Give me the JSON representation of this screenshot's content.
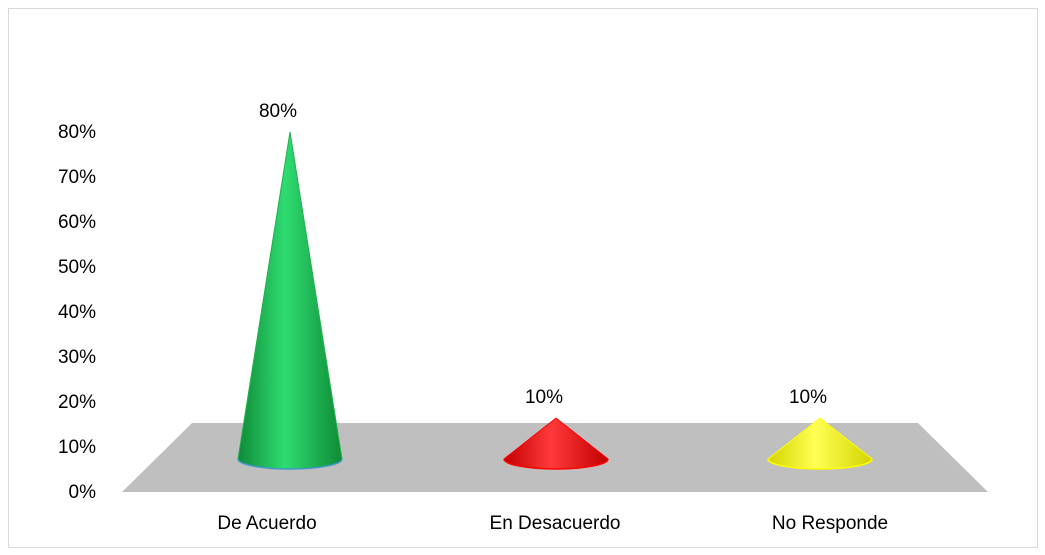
{
  "chart_data": {
    "type": "bar",
    "style": "3d-cone",
    "categories": [
      "De Acuerdo",
      "En Desacuerdo",
      "No Responde"
    ],
    "values": [
      0.8,
      0.1,
      0.1
    ],
    "data_labels": [
      "80%",
      "10%",
      "10%"
    ],
    "colors": [
      "#22b14c",
      "#ff0000",
      "#ffff00"
    ],
    "floor_color": "#bfbfbf",
    "y_ticks": [
      "0%",
      "10%",
      "20%",
      "30%",
      "40%",
      "50%",
      "60%",
      "70%",
      "80%"
    ],
    "ylim": [
      0,
      0.8
    ],
    "grid": false,
    "legend": "none",
    "title": "",
    "xlabel": "",
    "ylabel": ""
  }
}
